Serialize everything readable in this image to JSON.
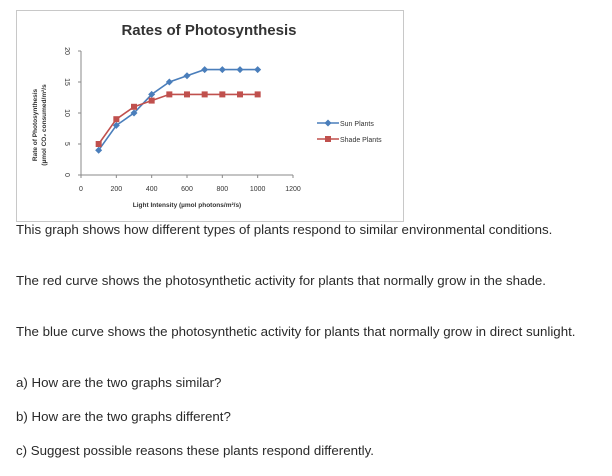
{
  "chart_data": {
    "type": "line",
    "title": "Rates of Photosynthesis",
    "xlabel": "Light Intensity (µmol photons/m²/s)",
    "ylabel_line1": "Rate of Photosynthesis",
    "ylabel_line2": "(µmol CO₂ consumed/m²/s",
    "xlim": [
      0,
      1200
    ],
    "ylim": [
      0,
      20
    ],
    "x_ticks": [
      0,
      200,
      400,
      600,
      800,
      1000,
      1200
    ],
    "y_ticks": [
      0,
      5,
      10,
      15,
      20
    ],
    "legend_position": "right",
    "series": [
      {
        "name": "Sun Plants",
        "color": "#4a7ebb",
        "marker": "diamond",
        "x": [
          100,
          200,
          300,
          400,
          500,
          600,
          700,
          800,
          900,
          1000
        ],
        "y": [
          4,
          8,
          10,
          13,
          15,
          16,
          17,
          17,
          17,
          17
        ]
      },
      {
        "name": "Shade Plants",
        "color": "#c0504d",
        "marker": "square",
        "x": [
          100,
          200,
          300,
          400,
          500,
          600,
          700,
          800,
          900,
          1000
        ],
        "y": [
          5,
          9,
          11,
          12,
          13,
          13,
          13,
          13,
          13,
          13
        ]
      }
    ]
  },
  "text": {
    "p1": "This graph shows how different types of plants respond to similar environmental conditions.",
    "p2": "The red curve shows the photosynthetic activity for plants that normally grow in the shade.",
    "p3": "The blue curve shows the photosynthetic activity for plants that normally grow in direct sunlight.",
    "qa": "a) How are the two graphs similar?",
    "qb": "b) How are the two graphs different?",
    "qc": "c) Suggest possible reasons these plants respond differently."
  }
}
